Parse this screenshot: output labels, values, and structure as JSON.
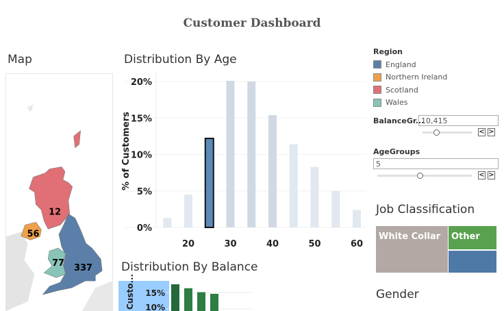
{
  "title": "Customer  Dashboard",
  "map": {
    "heading": "Map",
    "regions": [
      {
        "name": "England",
        "count": "337",
        "color": "#5b7fa8"
      },
      {
        "name": "Northern Ireland",
        "count": "56",
        "color": "#f0a04b"
      },
      {
        "name": "Scotland",
        "count": "12",
        "color": "#e07075"
      },
      {
        "name": "Wales",
        "count": "77",
        "color": "#88c4b8"
      }
    ]
  },
  "age_chart": {
    "heading": "Distribution By Age"
  },
  "balance_chart": {
    "heading": "Distribution By Balance",
    "ylabel": "Custo..."
  },
  "legend": {
    "title": "Region",
    "items": [
      {
        "label": "England",
        "color": "#5b7fa8"
      },
      {
        "label": "Northern Ireland",
        "color": "#f0a04b"
      },
      {
        "label": "Scotland",
        "color": "#e07075"
      },
      {
        "label": "Wales",
        "color": "#88c4b8"
      }
    ]
  },
  "filters": {
    "balance": {
      "label": "BalanceGr...",
      "value": "10,415",
      "slider_fraction": 0.28
    },
    "age": {
      "label": "AgeGroups",
      "value": "5",
      "slider_fraction": 0.45
    }
  },
  "job": {
    "heading": "Job Classification",
    "items": [
      {
        "label": "White Collar",
        "color": "#b3a9a4"
      },
      {
        "label": "Other",
        "color": "#59a14f"
      },
      {
        "label": "",
        "color": "#4e79a7"
      }
    ]
  },
  "gender": {
    "heading": "Gender"
  },
  "chart_data": [
    {
      "type": "bar",
      "title": "Distribution By Age",
      "ylabel": "% of Customers",
      "xlabel": "",
      "x": [
        15,
        20,
        25,
        30,
        35,
        40,
        45,
        50,
        55,
        60
      ],
      "values": [
        1.3,
        4.5,
        12.2,
        20.1,
        20.0,
        15.4,
        11.4,
        8.3,
        5.0,
        2.4
      ],
      "highlighted": 25,
      "xticks": [
        "20",
        "30",
        "40",
        "50",
        "60"
      ],
      "yticks": [
        "0%",
        "5%",
        "10%",
        "15%",
        "20%"
      ],
      "ylim": [
        0,
        20.5
      ],
      "grid": true
    },
    {
      "type": "bar",
      "title": "Distribution By Balance",
      "ylabel": "Custo...",
      "values": [
        17.5,
        16.3,
        15.1,
        14.6
      ],
      "yticks": [
        "10%",
        "15%"
      ]
    }
  ]
}
